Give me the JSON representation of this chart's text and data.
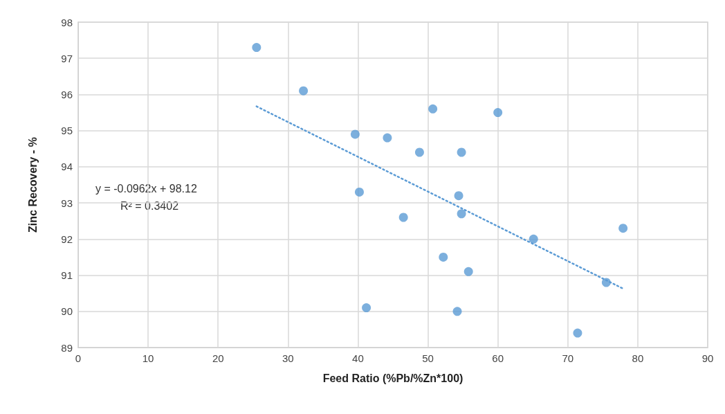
{
  "chart_data": {
    "type": "scatter",
    "xlabel": "Feed Ratio (%Pb/%Zn*100)",
    "ylabel": "Zinc Recovery - %",
    "annotations": [
      "y = -0.0962x + 98.12",
      "R² = 0.3402"
    ],
    "xlim": [
      0,
      90
    ],
    "xticks": [
      0,
      10,
      20,
      30,
      40,
      50,
      60,
      70,
      80,
      90
    ],
    "ylim": [
      89,
      98
    ],
    "yticks": [
      89,
      90,
      91,
      92,
      93,
      94,
      95,
      96,
      97,
      98
    ],
    "grid": true,
    "marker": "circle",
    "series": [
      {
        "color": "#5b9bd5",
        "x": [
          25.5,
          32.2,
          39.6,
          44.2,
          40.2,
          41.2,
          46.5,
          50.7,
          60.0,
          48.8,
          54.8,
          54.4,
          54.8,
          77.9,
          65.1,
          52.2,
          55.8,
          75.5,
          54.2,
          71.4
        ],
        "values": [
          97.3,
          96.1,
          94.9,
          94.8,
          93.3,
          90.1,
          92.6,
          95.6,
          95.5,
          94.4,
          94.4,
          93.2,
          92.7,
          92.3,
          92.0,
          91.5,
          91.1,
          90.8,
          90.0,
          89.4
        ]
      },
      {
        "type": "line",
        "color": "#5b9bd5",
        "line_style": "dotted",
        "marker": "none",
        "x": [
          25.5,
          77.9
        ],
        "values": [
          95.67,
          90.63
        ]
      }
    ]
  }
}
